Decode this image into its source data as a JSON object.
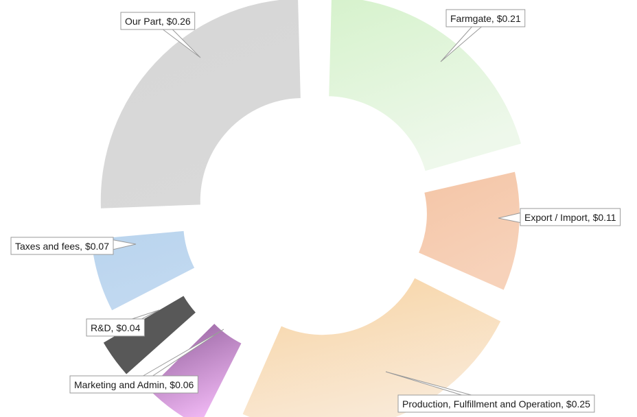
{
  "chart_data": {
    "type": "pie",
    "variant": "exploded-donut",
    "title": "",
    "slices": [
      {
        "label": "Farmgate",
        "value_label": "$0.21",
        "value": 0.21,
        "color_start": "#d6f2cc",
        "color_end": "#eef8eb"
      },
      {
        "label": "Export / Import",
        "value_label": "$0.11",
        "value": 0.11,
        "color_start": "#f4c5a6",
        "color_end": "#f7d2ba"
      },
      {
        "label": "Production, Fulfillment and Operation",
        "value_label": "$0.25",
        "value": 0.25,
        "color_start": "#f8d3a2",
        "color_end": "#f9ead8"
      },
      {
        "label": "Marketing and Admin",
        "value_label": "$0.06",
        "value": 0.06,
        "color_start": "#8e5c98",
        "color_end": "#f0b8f4"
      },
      {
        "label": "R&D",
        "value_label": "$0.04",
        "value": 0.04,
        "color_start": "#585858",
        "color_end": "#585858"
      },
      {
        "label": "Taxes and fees",
        "value_label": "$0.07",
        "value": 0.07,
        "color_start": "#b9d4ee",
        "color_end": "#c2d9f0"
      },
      {
        "label": "Our Part",
        "value_label": "$0.26",
        "value": 0.26,
        "color_start": "#d6d6d6",
        "color_end": "#d9d9d9"
      }
    ],
    "legend": "none",
    "label_style": "callout-boxes"
  }
}
